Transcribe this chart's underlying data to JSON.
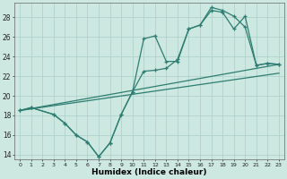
{
  "xlabel": "Humidex (Indice chaleur)",
  "background_color": "#cce8e0",
  "grid_color": "#aacfc8",
  "line_color": "#2e7d72",
  "xlim": [
    -0.5,
    23.5
  ],
  "ylim": [
    13.5,
    29.5
  ],
  "xticks": [
    0,
    1,
    2,
    3,
    4,
    5,
    6,
    7,
    8,
    9,
    10,
    11,
    12,
    13,
    14,
    15,
    16,
    17,
    18,
    19,
    20,
    21,
    22,
    23
  ],
  "yticks": [
    14,
    16,
    18,
    20,
    22,
    24,
    26,
    28
  ],
  "series1_x": [
    0,
    1,
    3,
    4,
    5,
    6,
    7,
    8,
    9,
    10,
    11,
    12,
    13,
    14,
    15,
    16,
    17,
    18,
    19,
    20,
    21,
    22,
    23
  ],
  "series1_y": [
    18.5,
    18.8,
    18.1,
    17.2,
    16.0,
    15.3,
    13.8,
    15.2,
    18.1,
    20.4,
    25.8,
    26.1,
    23.5,
    23.5,
    26.8,
    27.2,
    29.0,
    28.7,
    28.1,
    27.0,
    23.1,
    23.3,
    23.2
  ],
  "series2_x": [
    0,
    1,
    3,
    4,
    5,
    6,
    7,
    8,
    9,
    10,
    11,
    12,
    13,
    14,
    15,
    16,
    17,
    18,
    19,
    20,
    21,
    22,
    23
  ],
  "series2_y": [
    18.5,
    18.8,
    18.1,
    17.2,
    16.0,
    15.3,
    13.8,
    15.2,
    18.1,
    20.4,
    22.5,
    22.6,
    22.8,
    23.7,
    26.8,
    27.2,
    28.7,
    28.5,
    26.8,
    28.1,
    23.1,
    23.3,
    23.2
  ],
  "line1_x": [
    0,
    23
  ],
  "line1_y": [
    18.5,
    23.2
  ],
  "line2_x": [
    0,
    23
  ],
  "line2_y": [
    18.5,
    22.3
  ]
}
